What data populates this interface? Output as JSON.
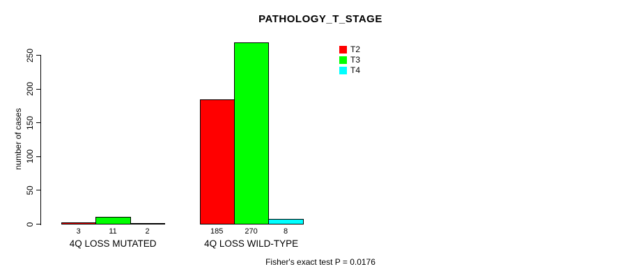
{
  "title": "PATHOLOGY_T_STAGE",
  "footer": "Fisher's exact test P = 0.0176",
  "chart_data": {
    "type": "bar",
    "title": "PATHOLOGY_T_STAGE",
    "xlabel": "",
    "ylabel": "number of cases",
    "categories": [
      "4Q LOSS MUTATED",
      "4Q LOSS WILD-TYPE"
    ],
    "series": [
      {
        "name": "T2",
        "color": "#ff0000",
        "values": [
          3,
          185
        ]
      },
      {
        "name": "T3",
        "color": "#00ff00",
        "values": [
          11,
          270
        ]
      },
      {
        "name": "T4",
        "color": "#00ffff",
        "values": [
          2,
          8
        ]
      }
    ],
    "bar_value_labels": [
      [
        "3",
        "11",
        "2"
      ],
      [
        "185",
        "270",
        "8"
      ]
    ],
    "yticks": [
      0,
      50,
      100,
      150,
      200,
      250
    ],
    "ylim": [
      0,
      250
    ],
    "grid": false,
    "legend": {
      "position": "top-right-inside",
      "entries": [
        "T2",
        "T3",
        "T4"
      ]
    },
    "annotation": "Fisher's exact test P = 0.0176"
  }
}
